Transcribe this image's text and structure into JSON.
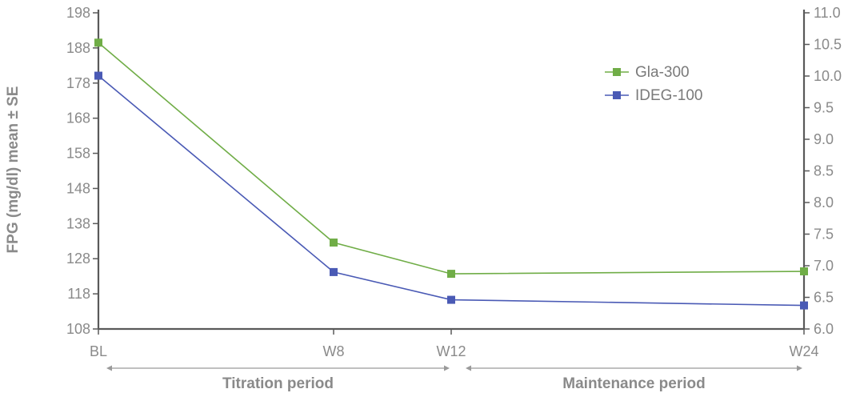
{
  "chart_data": {
    "type": "line",
    "categories": [
      "BL",
      "W8",
      "W12",
      "W24"
    ],
    "x_positions_weeks": [
      0,
      8,
      12,
      24
    ],
    "ylabel": "FPG (mg/dl) mean ± SE",
    "ylim": [
      108,
      198
    ],
    "y_ticks": [
      108,
      118,
      128,
      138,
      148,
      158,
      168,
      178,
      188,
      198
    ],
    "y2lim": [
      6.0,
      11.0
    ],
    "y2_ticks": [
      "6.0",
      "6.5",
      "7.0",
      "7.5",
      "8.0",
      "8.5",
      "9.0",
      "9.5",
      "10.0",
      "10.5",
      "11.0"
    ],
    "grid": false,
    "legend_position": "top-right",
    "series": [
      {
        "name": "Gla-300",
        "color": "#70ad47",
        "values": [
          189.5,
          132.6,
          123.7,
          124.4
        ]
      },
      {
        "name": "IDEG-100",
        "color": "#4a5ab5",
        "values": [
          180.1,
          124.2,
          116.3,
          114.7
        ]
      }
    ],
    "periods": [
      {
        "label": "Titration period",
        "from": "BL",
        "to": "W12"
      },
      {
        "label": "Maintenance period",
        "from": "W12",
        "to": "W24"
      }
    ]
  }
}
